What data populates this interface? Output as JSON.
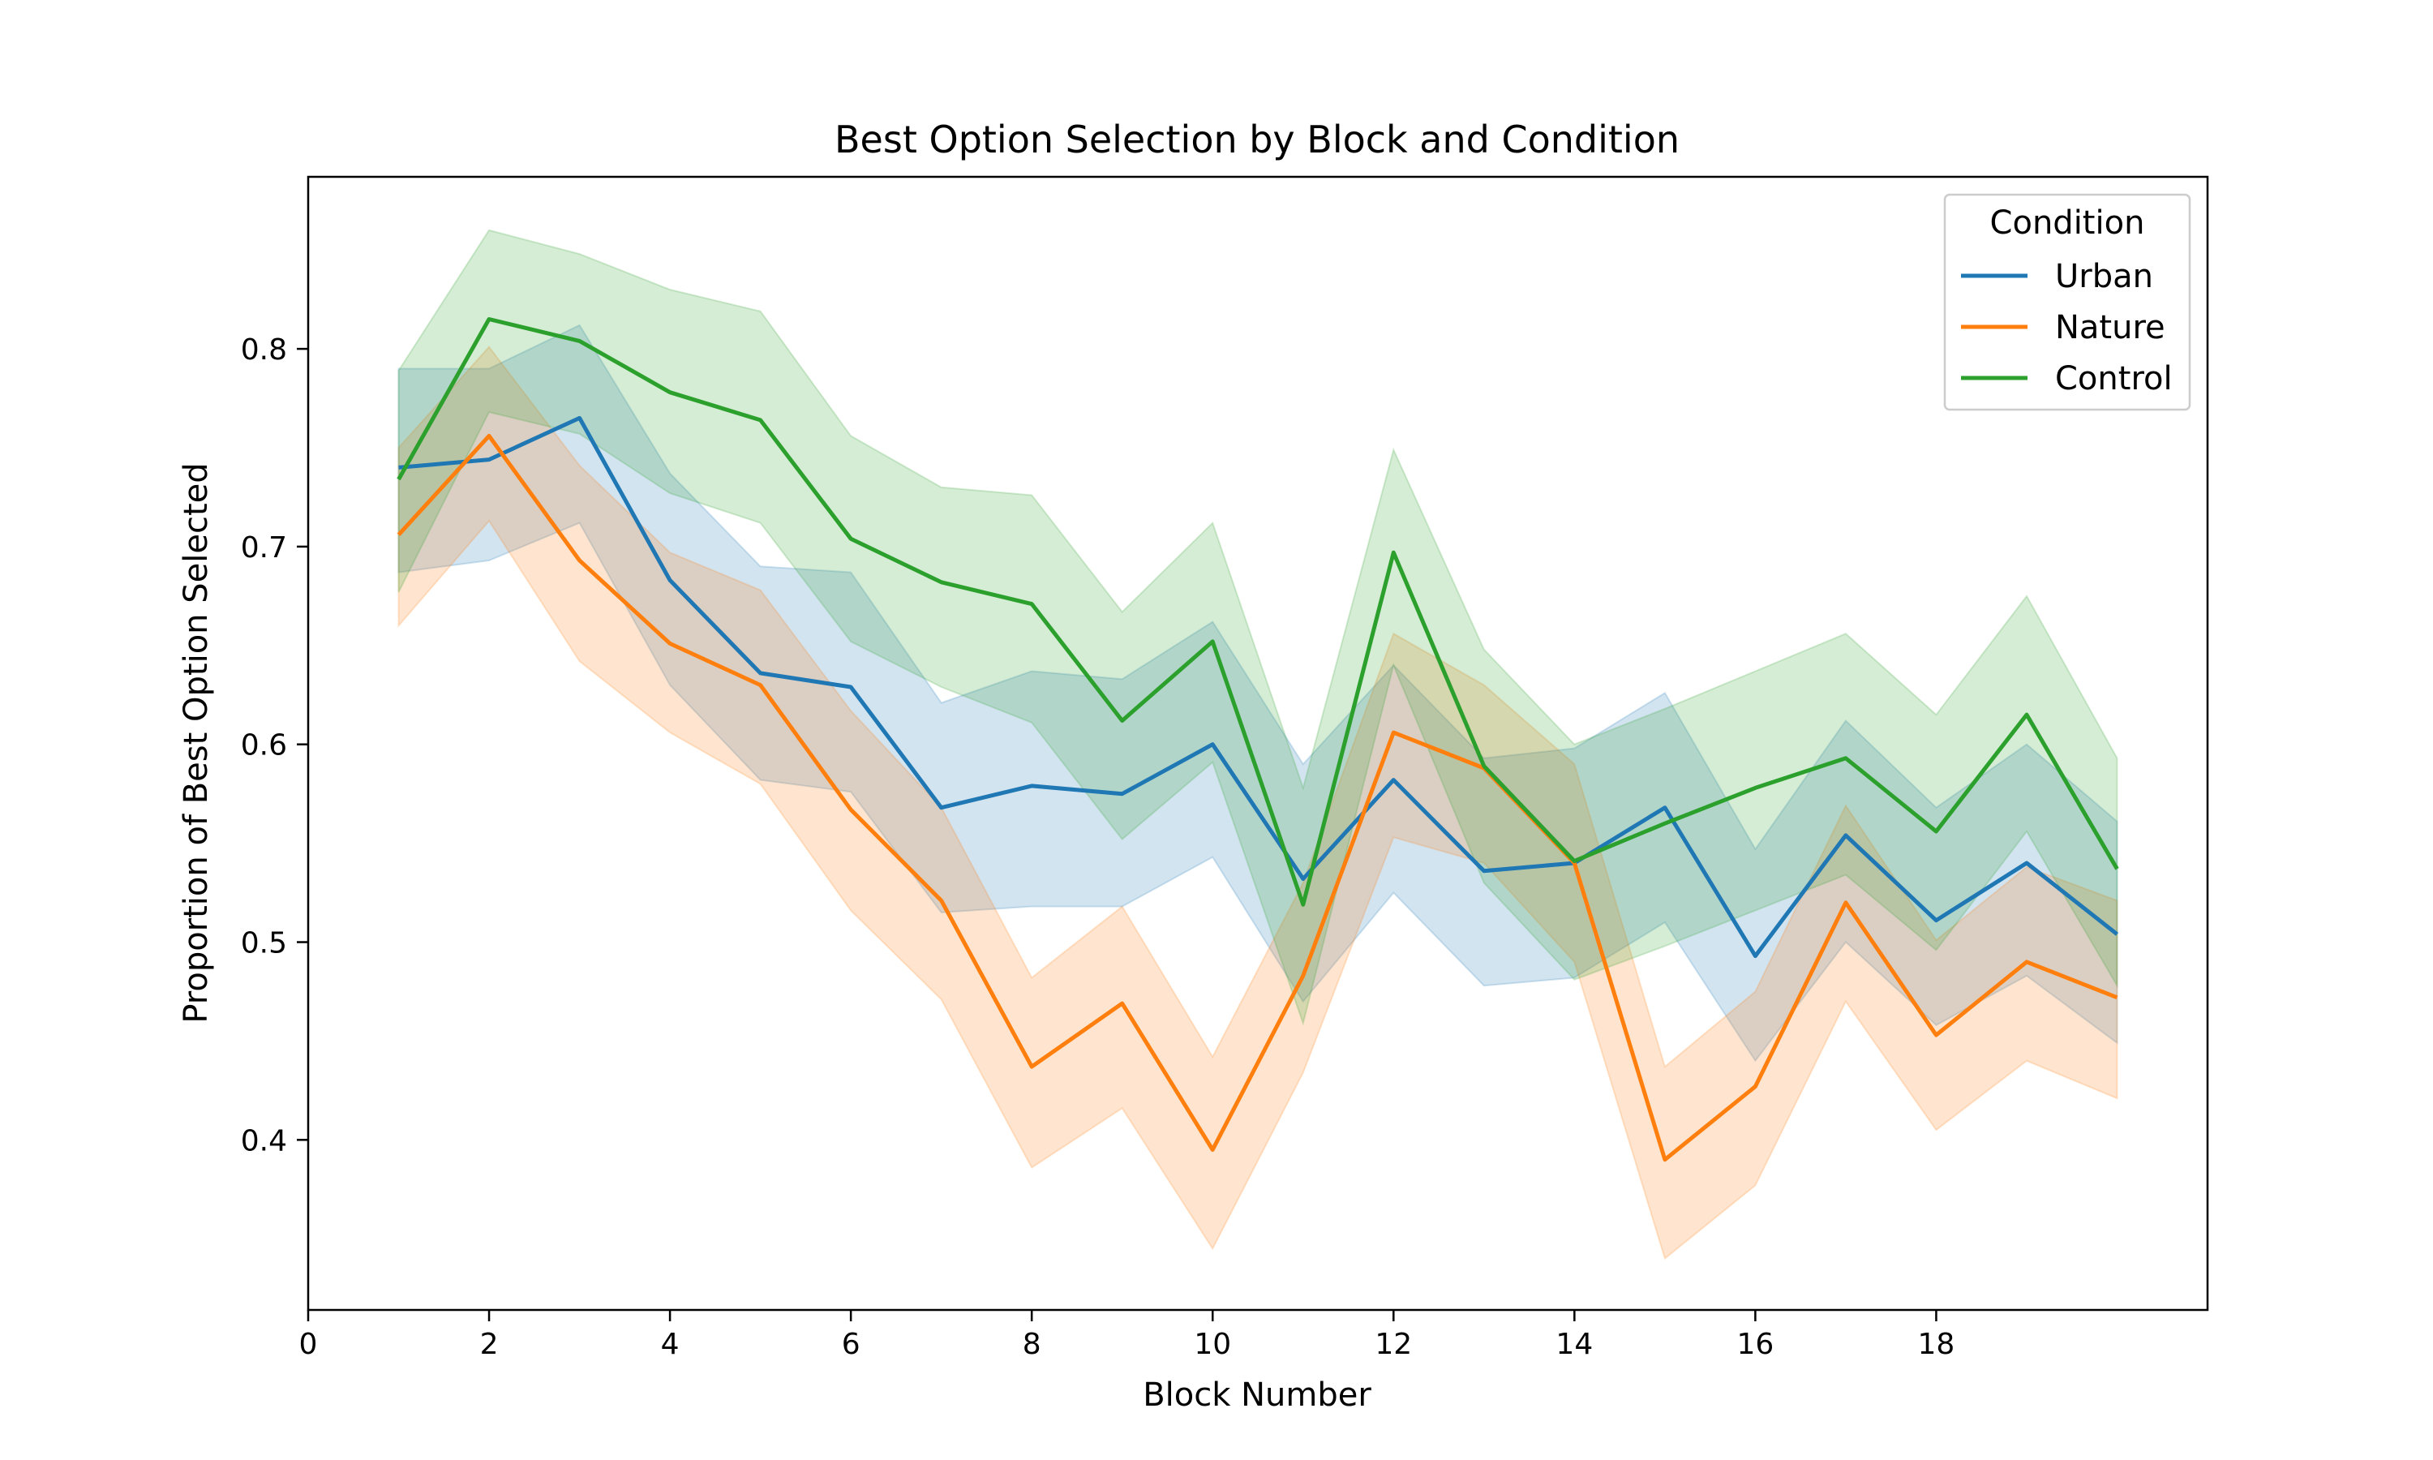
{
  "chart_data": {
    "type": "line",
    "title": "Best Option Selection by Block and Condition",
    "xlabel": "Block Number",
    "ylabel": "Proportion of Best Option Selected",
    "xlim": [
      0,
      21
    ],
    "ylim": [
      0.314,
      0.887
    ],
    "xticks": [
      0,
      2,
      4,
      6,
      8,
      10,
      12,
      14,
      16,
      18
    ],
    "yticks": [
      0.4,
      0.5,
      0.6,
      0.7,
      0.8
    ],
    "grid": false,
    "legend": {
      "title": "Condition",
      "placement": "top-right"
    },
    "x": [
      1,
      2,
      3,
      4,
      5,
      6,
      7,
      8,
      9,
      10,
      11,
      12,
      13,
      14,
      15,
      16,
      17,
      18,
      19,
      20
    ],
    "series": [
      {
        "name": "Urban",
        "color": "#1f77b4",
        "values": [
          0.74,
          0.744,
          0.765,
          0.683,
          0.636,
          0.629,
          0.568,
          0.579,
          0.575,
          0.6,
          0.532,
          0.582,
          0.536,
          0.54,
          0.568,
          0.493,
          0.554,
          0.511,
          0.54,
          0.504
        ],
        "lower": [
          0.687,
          0.693,
          0.712,
          0.63,
          0.582,
          0.576,
          0.515,
          0.518,
          0.518,
          0.543,
          0.47,
          0.525,
          0.478,
          0.482,
          0.51,
          0.44,
          0.5,
          0.458,
          0.483,
          0.449
        ],
        "upper": [
          0.79,
          0.79,
          0.812,
          0.737,
          0.69,
          0.687,
          0.621,
          0.637,
          0.633,
          0.662,
          0.59,
          0.64,
          0.593,
          0.598,
          0.626,
          0.547,
          0.612,
          0.568,
          0.6,
          0.561
        ]
      },
      {
        "name": "Nature",
        "color": "#ff7f0e",
        "values": [
          0.706,
          0.756,
          0.693,
          0.651,
          0.63,
          0.567,
          0.521,
          0.437,
          0.469,
          0.395,
          0.483,
          0.606,
          0.588,
          0.54,
          0.39,
          0.427,
          0.52,
          0.453,
          0.49,
          0.472
        ],
        "lower": [
          0.66,
          0.713,
          0.642,
          0.606,
          0.58,
          0.516,
          0.471,
          0.386,
          0.416,
          0.345,
          0.434,
          0.553,
          0.54,
          0.49,
          0.34,
          0.377,
          0.47,
          0.405,
          0.44,
          0.421
        ],
        "upper": [
          0.75,
          0.801,
          0.741,
          0.697,
          0.678,
          0.617,
          0.568,
          0.482,
          0.518,
          0.442,
          0.53,
          0.656,
          0.63,
          0.59,
          0.437,
          0.475,
          0.569,
          0.501,
          0.538,
          0.521
        ]
      },
      {
        "name": "Control",
        "color": "#2ca02c",
        "values": [
          0.734,
          0.815,
          0.804,
          0.778,
          0.764,
          0.704,
          0.682,
          0.671,
          0.612,
          0.652,
          0.519,
          0.697,
          0.589,
          0.541,
          0.56,
          0.578,
          0.593,
          0.556,
          0.615,
          0.537
        ],
        "lower": [
          0.677,
          0.768,
          0.757,
          0.727,
          0.712,
          0.652,
          0.629,
          0.611,
          0.552,
          0.591,
          0.459,
          0.64,
          0.53,
          0.481,
          0.498,
          0.516,
          0.534,
          0.496,
          0.556,
          0.478
        ],
        "upper": [
          0.789,
          0.86,
          0.848,
          0.83,
          0.819,
          0.756,
          0.73,
          0.726,
          0.667,
          0.712,
          0.578,
          0.749,
          0.648,
          0.6,
          0.618,
          0.637,
          0.656,
          0.615,
          0.675,
          0.593
        ]
      }
    ]
  }
}
